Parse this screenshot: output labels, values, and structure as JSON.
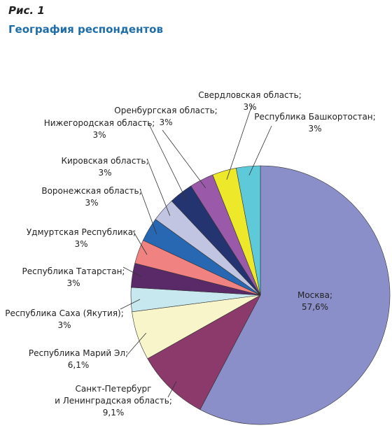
{
  "chart_data": {
    "type": "pie",
    "title": "Рис. 1",
    "subtitle": "География респондентов",
    "categories": [
      "Москва;",
      "Санкт-Петербург\nи Ленинградская область;",
      "Республика Марий Эл;",
      "Республика Саха (Якутия);",
      "Республика Татарстан;",
      "Удмуртская Республика;",
      "Воронежская область;",
      "Кировская область;",
      "Нижегородская область;",
      "Оренбургская область;",
      "Свердловская область;",
      "Республика Башкортостан;"
    ],
    "values": [
      57.6,
      9.1,
      6.1,
      3,
      3,
      3,
      3,
      3,
      3,
      3,
      3,
      3
    ],
    "value_labels": [
      "57,6%",
      "9,1%",
      "6,1%",
      "3%",
      "3%",
      "3%",
      "3%",
      "3%",
      "3%",
      "3%",
      "3%",
      "3%"
    ],
    "colors": [
      "#8a8fc9",
      "#8b3a6b",
      "#f7f5c9",
      "#c8e8ef",
      "#5a2a68",
      "#f08282",
      "#2868b2",
      "#c1c5e2",
      "#243470",
      "#9a5aa9",
      "#ede82a",
      "#5ecad9"
    ]
  }
}
